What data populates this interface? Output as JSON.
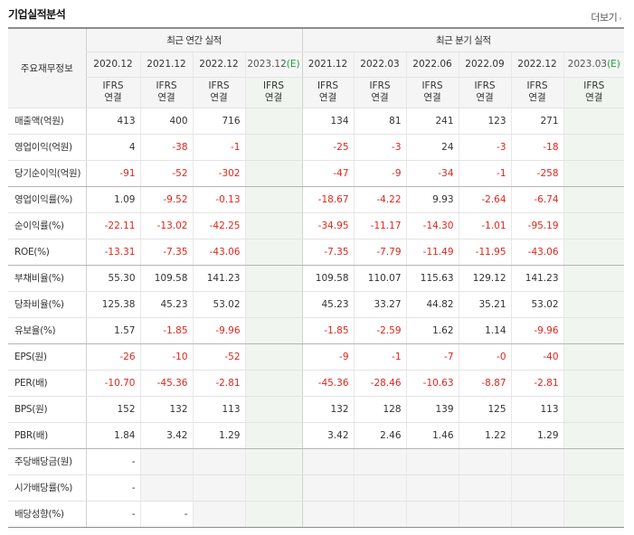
{
  "header": {
    "title": "기업실적분석",
    "more_label": "더보기",
    "more_arrow": "›"
  },
  "table": {
    "rowhead_label": "주요재무정보",
    "group_annual": "최근 연간 실적",
    "group_quarter": "최근 분기 실적",
    "periods": [
      "2020.12",
      "2021.12",
      "2022.12",
      "2023.12",
      "2021.12",
      "2022.03",
      "2022.06",
      "2022.09",
      "2022.12",
      "2023.03"
    ],
    "estimate_suffix": "(E)",
    "std_line1": "IFRS",
    "std_line2": "연결",
    "rows": [
      {
        "label": "매출액(억원)",
        "cells": [
          "413",
          "400",
          "716",
          "",
          "134",
          "81",
          "241",
          "123",
          "271",
          ""
        ]
      },
      {
        "label": "영업이익(억원)",
        "cells": [
          "4",
          "-38",
          "-1",
          "",
          "-25",
          "-3",
          "24",
          "-3",
          "-18",
          ""
        ]
      },
      {
        "label": "당기순이익(억원)",
        "cells": [
          "-91",
          "-52",
          "-302",
          "",
          "-47",
          "-9",
          "-34",
          "-1",
          "-258",
          ""
        ]
      },
      {
        "label": "영업이익률(%)",
        "cells": [
          "1.09",
          "-9.52",
          "-0.13",
          "",
          "-18.67",
          "-4.22",
          "9.93",
          "-2.64",
          "-6.74",
          ""
        ]
      },
      {
        "label": "순이익률(%)",
        "cells": [
          "-22.11",
          "-13.02",
          "-42.25",
          "",
          "-34.95",
          "-11.17",
          "-14.30",
          "-1.01",
          "-95.19",
          ""
        ]
      },
      {
        "label": "ROE(%)",
        "cells": [
          "-13.31",
          "-7.35",
          "-43.06",
          "",
          "-7.35",
          "-7.79",
          "-11.49",
          "-11.95",
          "-43.06",
          ""
        ]
      },
      {
        "label": "부채비율(%)",
        "cells": [
          "55.30",
          "109.58",
          "141.23",
          "",
          "109.58",
          "110.07",
          "115.63",
          "129.12",
          "141.23",
          ""
        ]
      },
      {
        "label": "당좌비율(%)",
        "cells": [
          "125.38",
          "45.23",
          "53.02",
          "",
          "45.23",
          "33.27",
          "44.82",
          "35.21",
          "53.02",
          ""
        ]
      },
      {
        "label": "유보율(%)",
        "cells": [
          "1.57",
          "-1.85",
          "-9.96",
          "",
          "-1.85",
          "-2.59",
          "1.62",
          "1.14",
          "-9.96",
          ""
        ]
      },
      {
        "label": "EPS(원)",
        "cells": [
          "-26",
          "-10",
          "-52",
          "",
          "-9",
          "-1",
          "-7",
          "-0",
          "-40",
          ""
        ]
      },
      {
        "label": "PER(배)",
        "cells": [
          "-10.70",
          "-45.36",
          "-2.81",
          "",
          "-45.36",
          "-28.46",
          "-10.63",
          "-8.87",
          "-2.81",
          ""
        ]
      },
      {
        "label": "BPS(원)",
        "cells": [
          "152",
          "132",
          "113",
          "",
          "132",
          "128",
          "139",
          "125",
          "113",
          ""
        ]
      },
      {
        "label": "PBR(배)",
        "cells": [
          "1.84",
          "3.42",
          "1.29",
          "",
          "3.42",
          "2.46",
          "1.46",
          "1.22",
          "1.29",
          ""
        ]
      },
      {
        "label": "주당배당금(원)",
        "cells": [
          "-",
          "",
          "",
          "",
          "",
          "",
          "",
          "",
          "",
          ""
        ]
      },
      {
        "label": "시가배당률(%)",
        "cells": [
          "-",
          "",
          "",
          "",
          "",
          "",
          "",
          "",
          "",
          ""
        ]
      },
      {
        "label": "배당성향(%)",
        "cells": [
          "-",
          "-",
          "",
          "",
          "",
          "",
          "",
          "",
          "",
          ""
        ]
      }
    ]
  },
  "colors": {
    "negative": "#e1251b",
    "standard": "#e4561d",
    "estimate_bg": "#f0f6ef",
    "estimate_mark": "#1a9e3a"
  }
}
